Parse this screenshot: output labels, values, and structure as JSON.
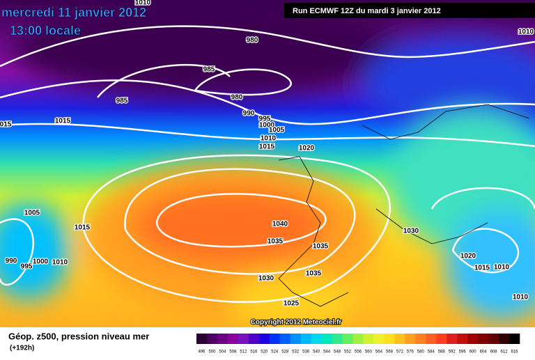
{
  "header": {
    "date": "mercredi 11 janvier 2012",
    "time": "13:00 locale",
    "run": "Run ECMWF 12Z du mardi 3 janvier 2012"
  },
  "isobar_labels": [
    "1010",
    "980",
    "985",
    "985",
    "980",
    "990",
    "995",
    "1000",
    "1005",
    "1010",
    "1015",
    "1020",
    "1015",
    "015",
    "1010",
    "1005",
    "1015",
    "1040",
    "1035",
    "1035",
    "1030",
    "990",
    "995",
    "1000",
    "1010",
    "1030",
    "1035",
    "1025",
    "1020",
    "1015",
    "1010",
    "1010"
  ],
  "copyright": "Copyright 2012 Meteociel.fr",
  "footer": {
    "title": "Géop. z500, pression niveau mer",
    "lead": "(+192h)"
  },
  "colorbar": {
    "labels": [
      "496",
      "500",
      "504",
      "508",
      "512",
      "516",
      "520",
      "524",
      "528",
      "532",
      "536",
      "540",
      "544",
      "548",
      "552",
      "556",
      "560",
      "564",
      "568",
      "572",
      "576",
      "580",
      "584",
      "588",
      "592",
      "596",
      "600",
      "604",
      "608",
      "612",
      "616"
    ],
    "colors": [
      "#2a0033",
      "#4b0060",
      "#6a0080",
      "#8a00a0",
      "#7a10c0",
      "#5000c8",
      "#1e00e0",
      "#0030ff",
      "#0060ff",
      "#0090ff",
      "#00b8ff",
      "#00d8f0",
      "#00e8c0",
      "#30e890",
      "#60f060",
      "#a0f040",
      "#d0f030",
      "#f0f030",
      "#ffe020",
      "#ffc020",
      "#ffa020",
      "#ff8020",
      "#ff6020",
      "#ff4020",
      "#e02020",
      "#c01010",
      "#a00000",
      "#800000",
      "#600000",
      "#300000",
      "#000000"
    ]
  }
}
